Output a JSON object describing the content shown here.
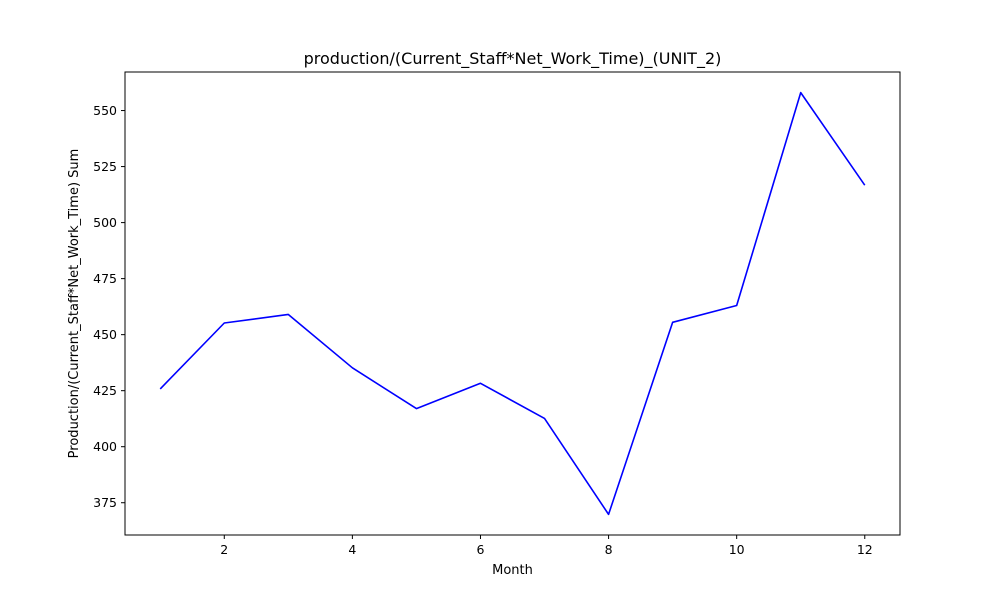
{
  "chart_data": {
    "type": "line",
    "title": "production/(Current_Staff*Net_Work_Time)_(UNIT_2)",
    "xlabel": "Month",
    "ylabel": "Production/(Current_Staff*Net_Work_Time) Sum",
    "x": [
      1,
      2,
      3,
      4,
      5,
      6,
      7,
      8,
      9,
      10,
      11,
      12
    ],
    "series": [
      {
        "values": [
          425.8,
          455.2,
          459.0,
          435.2,
          417.0,
          428.3,
          412.6,
          369.8,
          455.5,
          463.0,
          558.0,
          516.7
        ],
        "color": "#0000ff"
      }
    ],
    "xlim": [
      0.45,
      12.55
    ],
    "ylim": [
      360.6,
      567.2
    ],
    "xticks": [
      2,
      4,
      6,
      8,
      10,
      12
    ],
    "yticks": [
      375,
      400,
      425,
      450,
      475,
      500,
      525,
      550
    ],
    "grid": false
  }
}
